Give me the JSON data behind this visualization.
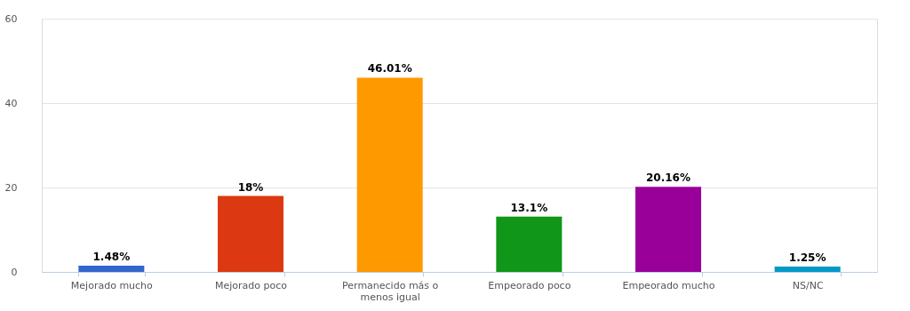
{
  "chart_data": {
    "type": "bar",
    "categories": [
      "Mejorado mucho",
      "Mejorado poco",
      "Permanecido más o menos igual",
      "Empeorado poco",
      "Empeorado mucho",
      "NS/NC"
    ],
    "values": [
      1.48,
      18,
      46.01,
      13.1,
      20.16,
      1.25
    ],
    "colors": [
      "#3366cc",
      "#dc3912",
      "#ff9900",
      "#109618",
      "#990099",
      "#0099c6"
    ],
    "value_labels": [
      "1.48%",
      "18%",
      "46.01%",
      "13.1%",
      "20.16%",
      "1.25%"
    ],
    "ylim": [
      0,
      60
    ],
    "yticks": [
      0,
      20,
      40,
      60
    ],
    "grid": "y"
  }
}
